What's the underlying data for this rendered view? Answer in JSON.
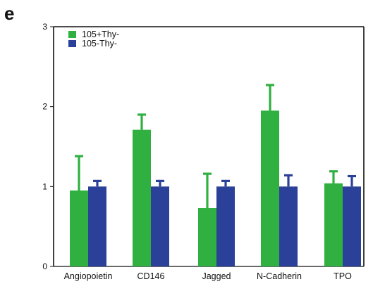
{
  "panel_label": "e",
  "chart_data": {
    "type": "bar",
    "title": "",
    "xlabel": "",
    "ylabel": "",
    "ylim": [
      0,
      3
    ],
    "yticks": [
      "0",
      "1",
      "2",
      "3"
    ],
    "grid": false,
    "legend_position": "top-left",
    "categories": [
      "Angiopoietin",
      "CD146",
      "Jagged",
      "N-Cadherin",
      "TPO"
    ],
    "series": [
      {
        "name": "105+Thy-",
        "color": "#2fb040",
        "values": [
          0.95,
          1.71,
          0.73,
          1.95,
          1.04
        ],
        "error_upper": [
          0.43,
          0.19,
          0.43,
          0.32,
          0.15
        ]
      },
      {
        "name": "105-Thy-",
        "color": "#2b4199",
        "values": [
          1.0,
          1.0,
          1.0,
          1.0,
          1.0
        ],
        "error_upper": [
          0.07,
          0.07,
          0.07,
          0.14,
          0.13
        ]
      }
    ]
  }
}
